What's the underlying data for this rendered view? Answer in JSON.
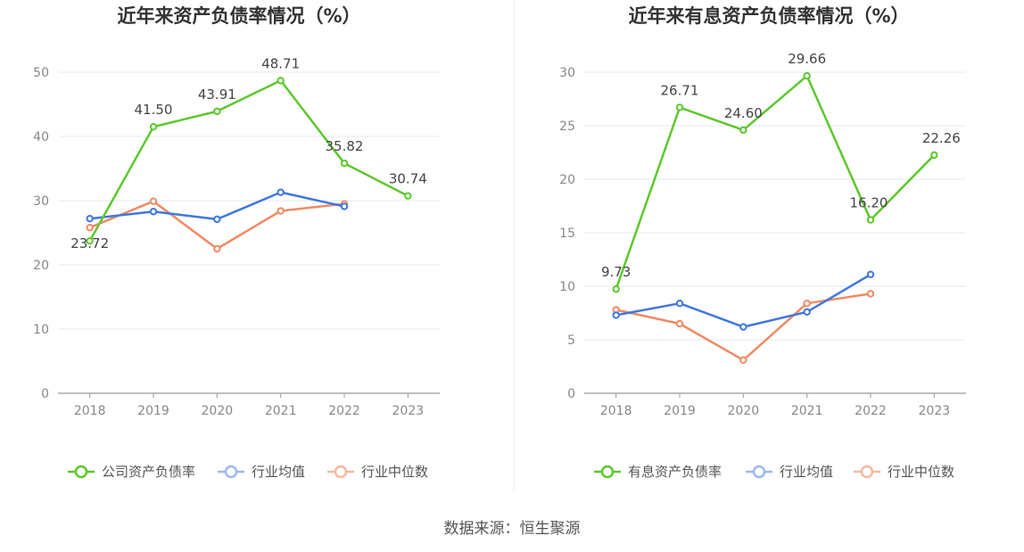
{
  "source": "数据来源：恒生聚源",
  "chart_data": [
    {
      "type": "line",
      "title": "近年来资产负债率情况（%）",
      "categories": [
        "2018",
        "2019",
        "2020",
        "2021",
        "2022",
        "2023"
      ],
      "ylim": [
        0,
        50
      ],
      "yticks": [
        0,
        10,
        20,
        30,
        40,
        50
      ],
      "grid": true,
      "legend_position": "bottom",
      "series": [
        {
          "name": "公司资产负债率",
          "color": "#5cc82b",
          "values": [
            23.72,
            41.5,
            43.91,
            48.71,
            35.82,
            30.74
          ],
          "labels": [
            "23.72",
            "41.50",
            "43.91",
            "48.71",
            "35.82",
            "30.74"
          ]
        },
        {
          "name": "行业均值",
          "color": "#3f77e0",
          "values": [
            27.2,
            28.3,
            27.1,
            31.3,
            29.1,
            null
          ]
        },
        {
          "name": "行业中位数",
          "color": "#f08a63",
          "values": [
            25.8,
            29.9,
            22.5,
            28.4,
            29.5,
            null
          ]
        }
      ]
    },
    {
      "type": "line",
      "title": "近年来有息资产负债率情况（%）",
      "categories": [
        "2018",
        "2019",
        "2020",
        "2021",
        "2022",
        "2023"
      ],
      "ylim": [
        0,
        30
      ],
      "yticks": [
        0,
        5,
        10,
        15,
        20,
        25,
        30
      ],
      "grid": true,
      "legend_position": "bottom",
      "series": [
        {
          "name": "有息资产负债率",
          "color": "#5cc82b",
          "values": [
            9.73,
            26.71,
            24.6,
            29.66,
            16.2,
            22.26
          ],
          "labels": [
            "9.73",
            "26.71",
            "24.60",
            "29.66",
            "16.20",
            "22.26"
          ]
        },
        {
          "name": "行业均值",
          "color": "#3f77e0",
          "values": [
            7.3,
            8.4,
            6.2,
            7.6,
            11.1,
            null
          ]
        },
        {
          "name": "行业中位数",
          "color": "#f08a63",
          "values": [
            7.8,
            6.5,
            3.1,
            8.4,
            9.3,
            null
          ]
        }
      ]
    }
  ]
}
